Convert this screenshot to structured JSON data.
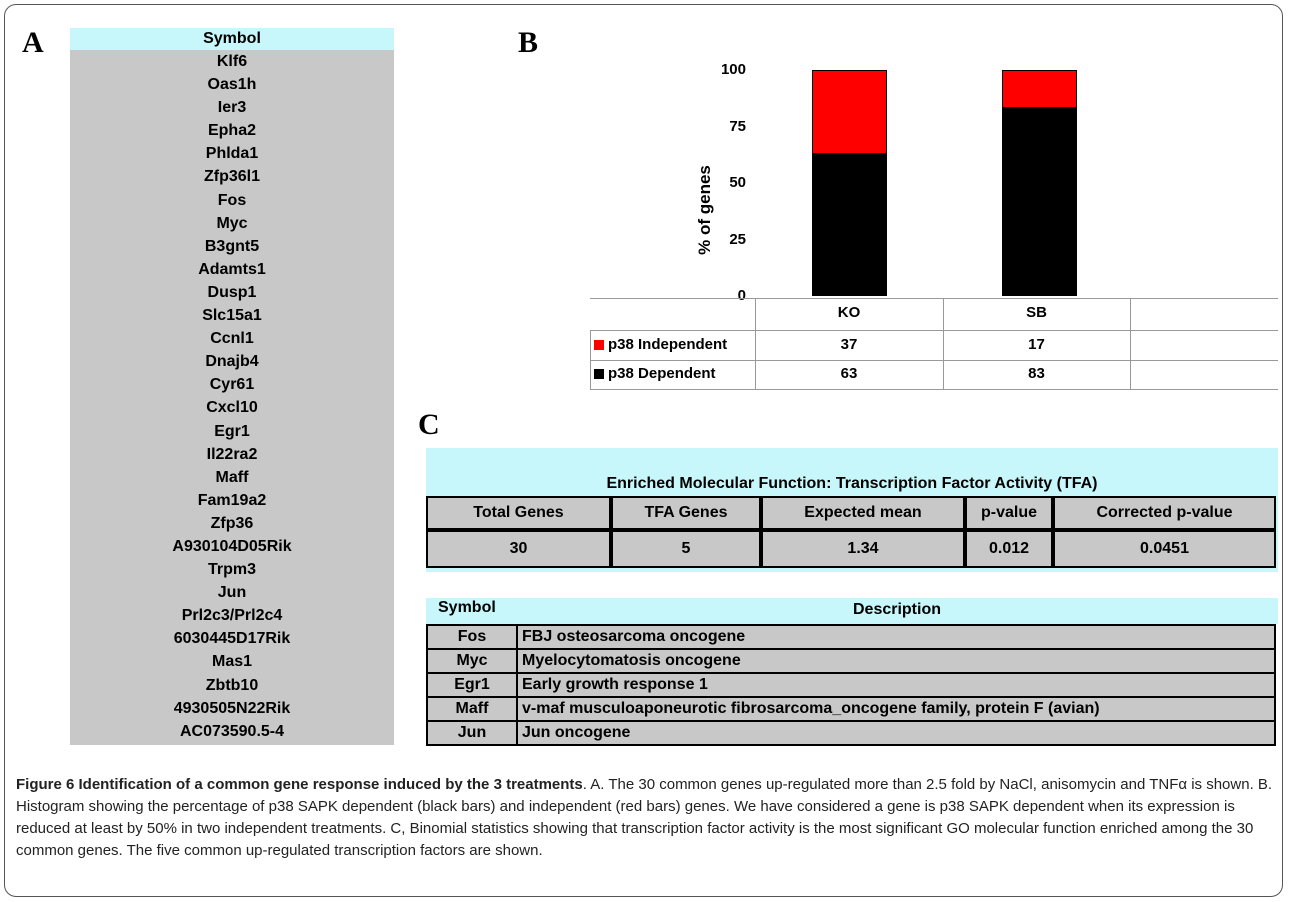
{
  "panels": {
    "a": "A",
    "b": "B",
    "c": "C"
  },
  "gene_list": {
    "header": "Symbol",
    "genes": [
      "Klf6",
      "Oas1h",
      "Ier3",
      "Epha2",
      "Phlda1",
      "Zfp36l1",
      "Fos",
      "Myc",
      "B3gnt5",
      "Adamts1",
      "Dusp1",
      "Slc15a1",
      "Ccnl1",
      "Dnajb4",
      "Cyr61",
      "Cxcl10",
      "Egr1",
      "Il22ra2",
      "Maff",
      "Fam19a2",
      "Zfp36",
      "A930104D05Rik",
      "Trpm3",
      "Jun",
      "Prl2c3/Prl2c4",
      "6030445D17Rik",
      "Mas1",
      "Zbtb10",
      "4930505N22Rik",
      "AC073590.5-4"
    ]
  },
  "chart_data": {
    "type": "bar",
    "stacked": true,
    "categories": [
      "KO",
      "SB"
    ],
    "series": [
      {
        "name": "p38 Dependent",
        "values": [
          63,
          83
        ],
        "color": "#000000"
      },
      {
        "name": "p38 Independent",
        "values": [
          37,
          17
        ],
        "color": "#ff0000"
      }
    ],
    "ylabel": "% of genes",
    "yticks": [
      0,
      25,
      50,
      75,
      100
    ],
    "ylim": [
      0,
      100
    ],
    "table": [
      {
        "label": "p38 Independent",
        "values": [
          "37",
          "17"
        ]
      },
      {
        "label": "p38 Dependent",
        "values": [
          "63",
          "83"
        ]
      }
    ]
  },
  "tfa": {
    "title": "Enriched Molecular Function: Transcription Factor Activity (TFA)",
    "headers": [
      "Total Genes",
      "TFA Genes",
      "Expected mean",
      "p-value",
      "Corrected p-value"
    ],
    "values": [
      "30",
      "5",
      "1.34",
      "0.012",
      "0.0451"
    ],
    "symbol_header": "Symbol",
    "description_header": "Description",
    "rows": [
      {
        "symbol": "Fos",
        "description": "FBJ osteosarcoma oncogene"
      },
      {
        "symbol": "Myc",
        "description": "Myelocytomatosis oncogene"
      },
      {
        "symbol": "Egr1",
        "description": "Early growth response 1"
      },
      {
        "symbol": "Maff",
        "description": "v-maf musculoaponeurotic fibrosarcoma_oncogene family, protein F (avian)"
      },
      {
        "symbol": "Jun",
        "description": "Jun oncogene"
      }
    ]
  },
  "caption": {
    "title": "Figure 6 Identification of a common gene response induced by the 3 treatments",
    "text": ". A. The 30 common genes up-regulated more than 2.5 fold by NaCl, anisomycin and TNFα is shown. B. Histogram showing the percentage of p38 SAPK dependent (black bars) and independent (red bars) genes. We have considered a gene is p38 SAPK dependent when its expression is reduced at least by 50% in two independent treatments. C, Binomial statistics showing that transcription factor activity is the most significant GO molecular function enriched among the 30 common genes. The five common up-regulated transcription factors are shown."
  }
}
